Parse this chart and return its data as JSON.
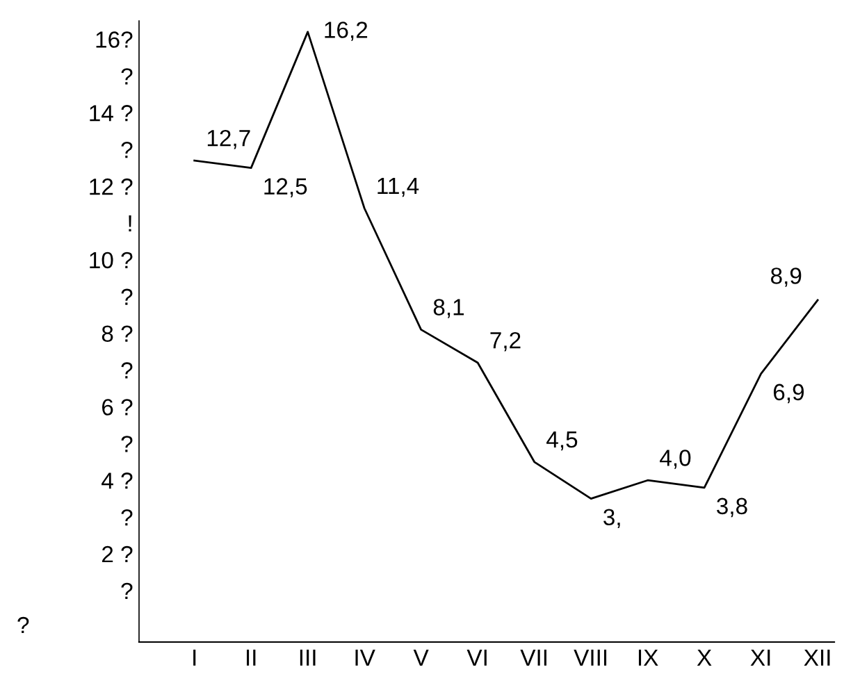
{
  "chart_data": {
    "type": "line",
    "categories": [
      "I",
      "II",
      "III",
      "IV",
      "V",
      "VI",
      "VII",
      "VIII",
      "IX",
      "X",
      "XI",
      "XII"
    ],
    "series": [
      {
        "color": "#000000",
        "values": [
          12.7,
          12.5,
          16.2,
          11.4,
          8.1,
          7.2,
          4.5,
          3.5,
          4.0,
          3.8,
          6.9,
          8.9
        ],
        "value_labels": [
          "12,7",
          "12,5",
          "16,2",
          "11,4",
          "8,1",
          "7,2",
          "4,5",
          "3,",
          "4,0",
          "3,8",
          "6,9",
          "8,9"
        ]
      }
    ],
    "ylim": [
      -0.4,
      16.5
    ],
    "yticks": [
      {
        "value": 1,
        "label": "?"
      },
      {
        "value": 2,
        "label": "2 ?"
      },
      {
        "value": 3,
        "label": "?"
      },
      {
        "value": 4,
        "label": "4 ?"
      },
      {
        "value": 5,
        "label": "?"
      },
      {
        "value": 6,
        "label": "6 ?"
      },
      {
        "value": 7,
        "label": "?"
      },
      {
        "value": 8,
        "label": "8 ?"
      },
      {
        "value": 9,
        "label": "?"
      },
      {
        "value": 10,
        "label": "10 ?"
      },
      {
        "value": 11,
        "label": "!"
      },
      {
        "value": 12,
        "label": "12 ?"
      },
      {
        "value": 13,
        "label": "?"
      },
      {
        "value": 14,
        "label": "14 ?"
      },
      {
        "value": 15,
        "label": "?"
      },
      {
        "value": 16,
        "label": "16?"
      }
    ],
    "annotations": [
      "?"
    ],
    "grid": false,
    "legend": false,
    "marker": "none",
    "line_style": "solid"
  }
}
